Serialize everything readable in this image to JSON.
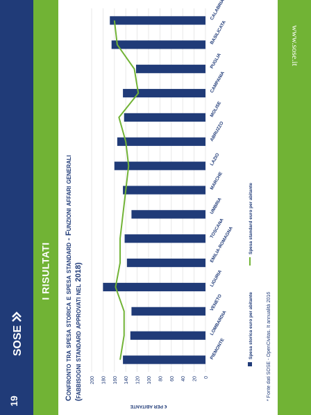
{
  "page": {
    "page_number": "19",
    "section_title": "I RISULTATI",
    "website": "www.sose.it",
    "logo_text": "SOSE",
    "footnote": "* Fonte dati SOSE - OpenCivitas. It annualità 2016"
  },
  "colors": {
    "navy": "#203b78",
    "green": "#71b335"
  },
  "chart_data": {
    "type": "bar",
    "title": "Confronto tra spesa storica e spesa standard - Funzioni affari generali",
    "subtitle": "(fabbisogni standard approvati nel 2018)",
    "ylabel": "€ PER ABITANTE",
    "ylim": [
      0,
      200
    ],
    "yticks": [
      0,
      20,
      40,
      60,
      80,
      100,
      120,
      140,
      160,
      180,
      200
    ],
    "categories": [
      "PIEMONTE",
      "LOMBARDIA",
      "VENETO",
      "LIGURIA",
      "EMILIA-ROMAGNA",
      "TOSCANA",
      "UMBRIA",
      "MARCHE",
      "LAZIO",
      "ABRUZZO",
      "MOLISE",
      "CAMPANIA",
      "PUGLIA",
      "BASILICATA",
      "CALABRIA"
    ],
    "series": [
      {
        "name": "Spesa storica euro per abitante",
        "type": "bar",
        "values": [
          145,
          132,
          130,
          180,
          138,
          142,
          130,
          145,
          160,
          155,
          143,
          145,
          122,
          165,
          168
        ]
      },
      {
        "name": "Spesa standard euro per abitante",
        "type": "line",
        "values": [
          150,
          143,
          143,
          158,
          150,
          150,
          145,
          140,
          135,
          140,
          152,
          118,
          125,
          155,
          160
        ]
      }
    ],
    "legend_position": "bottom",
    "grid": true
  }
}
